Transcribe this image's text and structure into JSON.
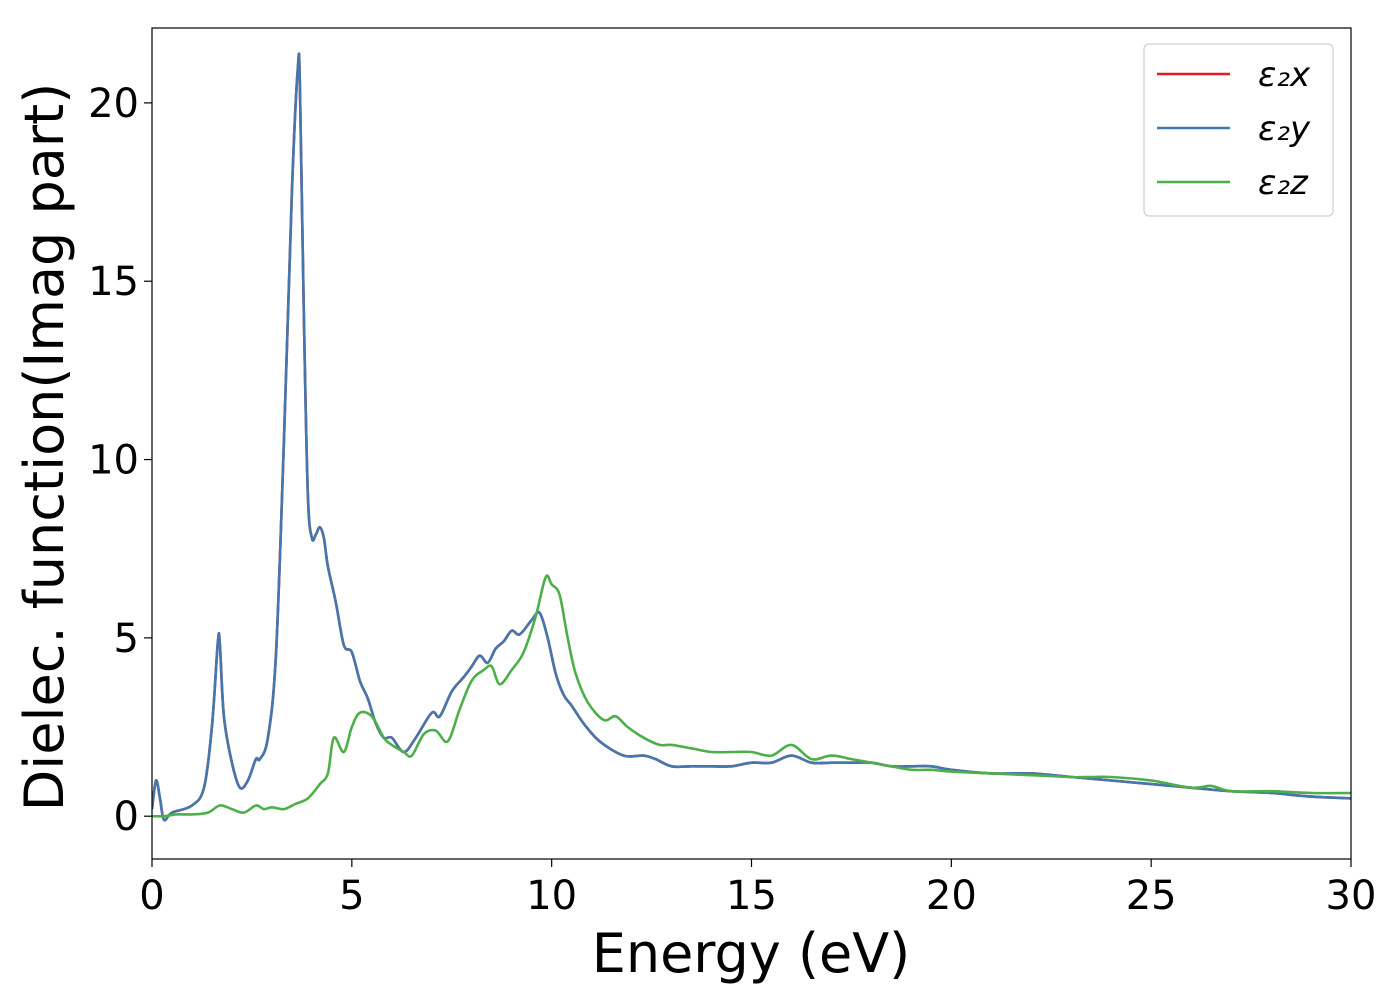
{
  "chart_data": {
    "type": "line",
    "xlabel": "Energy (eV)",
    "ylabel": "Dielec. function(Imag part)",
    "xlim": [
      0,
      30
    ],
    "ylim": [
      -1.2,
      22.1
    ],
    "xticks": [
      0,
      5,
      10,
      15,
      20,
      25,
      30
    ],
    "yticks": [
      0,
      5,
      10,
      15,
      20
    ],
    "legend_position": "top-right",
    "grid": false,
    "series": [
      {
        "name": "ε₂x",
        "color": "#e41a1c",
        "x": [
          0,
          0.1,
          0.2,
          0.3,
          0.5,
          1.0,
          1.3,
          1.5,
          1.65,
          1.7,
          1.8,
          2.0,
          2.2,
          2.4,
          2.6,
          2.7,
          2.9,
          3.1,
          3.3,
          3.5,
          3.65,
          3.7,
          3.8,
          3.9,
          4.0,
          4.1,
          4.2,
          4.3,
          4.4,
          4.6,
          4.8,
          5.0,
          5.2,
          5.4,
          5.6,
          5.8,
          6.0,
          6.3,
          6.6,
          7.0,
          7.2,
          7.5,
          7.8,
          8.0,
          8.2,
          8.4,
          8.6,
          8.8,
          9.0,
          9.2,
          9.5,
          9.7,
          9.9,
          10.1,
          10.3,
          10.5,
          10.8,
          11.2,
          11.8,
          12.3,
          12.6,
          13.0,
          13.5,
          14.0,
          14.5,
          15.0,
          15.5,
          16.0,
          16.5,
          17.0,
          17.5,
          18.0,
          18.5,
          19.0,
          19.5,
          20.0,
          21.0,
          22.0,
          23.0,
          24.0,
          25.0,
          26.0,
          27.0,
          28.0,
          29.0,
          30.0
        ],
        "values": [
          0.2,
          1.0,
          0.5,
          -0.1,
          0.1,
          0.3,
          0.8,
          2.5,
          4.9,
          4.8,
          2.8,
          1.5,
          0.8,
          1.0,
          1.6,
          1.6,
          2.2,
          4.5,
          10.5,
          17.5,
          21.0,
          20.5,
          14.0,
          9.0,
          7.8,
          7.9,
          8.1,
          7.8,
          7.0,
          6.0,
          4.8,
          4.6,
          3.8,
          3.3,
          2.6,
          2.2,
          2.2,
          1.8,
          2.2,
          2.9,
          2.8,
          3.5,
          3.9,
          4.2,
          4.5,
          4.3,
          4.7,
          4.9,
          5.2,
          5.1,
          5.5,
          5.7,
          5.0,
          4.0,
          3.4,
          3.1,
          2.6,
          2.1,
          1.7,
          1.7,
          1.6,
          1.4,
          1.4,
          1.4,
          1.4,
          1.5,
          1.5,
          1.7,
          1.5,
          1.5,
          1.5,
          1.5,
          1.4,
          1.4,
          1.4,
          1.3,
          1.2,
          1.2,
          1.1,
          1.0,
          0.9,
          0.8,
          0.7,
          0.65,
          0.55,
          0.5
        ]
      },
      {
        "name": "ε₂y",
        "color": "#4378ae",
        "x": [
          0,
          0.1,
          0.2,
          0.3,
          0.5,
          1.0,
          1.3,
          1.5,
          1.65,
          1.7,
          1.8,
          2.0,
          2.2,
          2.4,
          2.6,
          2.7,
          2.9,
          3.1,
          3.3,
          3.5,
          3.65,
          3.7,
          3.8,
          3.9,
          4.0,
          4.1,
          4.2,
          4.3,
          4.4,
          4.6,
          4.8,
          5.0,
          5.2,
          5.4,
          5.6,
          5.8,
          6.0,
          6.3,
          6.6,
          7.0,
          7.2,
          7.5,
          7.8,
          8.0,
          8.2,
          8.4,
          8.6,
          8.8,
          9.0,
          9.2,
          9.5,
          9.7,
          9.9,
          10.1,
          10.3,
          10.5,
          10.8,
          11.2,
          11.8,
          12.3,
          12.6,
          13.0,
          13.5,
          14.0,
          14.5,
          15.0,
          15.5,
          16.0,
          16.5,
          17.0,
          17.5,
          18.0,
          18.5,
          19.0,
          19.5,
          20.0,
          21.0,
          22.0,
          23.0,
          24.0,
          25.0,
          26.0,
          27.0,
          28.0,
          29.0,
          30.0
        ],
        "values": [
          0.2,
          1.0,
          0.5,
          -0.1,
          0.1,
          0.3,
          0.8,
          2.5,
          4.9,
          4.8,
          2.8,
          1.5,
          0.8,
          1.0,
          1.6,
          1.6,
          2.2,
          4.5,
          10.5,
          17.5,
          21.0,
          20.5,
          14.0,
          9.0,
          7.8,
          7.9,
          8.1,
          7.8,
          7.0,
          6.0,
          4.8,
          4.6,
          3.8,
          3.3,
          2.6,
          2.2,
          2.2,
          1.8,
          2.2,
          2.9,
          2.8,
          3.5,
          3.9,
          4.2,
          4.5,
          4.3,
          4.7,
          4.9,
          5.2,
          5.1,
          5.5,
          5.7,
          5.0,
          4.0,
          3.4,
          3.1,
          2.6,
          2.1,
          1.7,
          1.7,
          1.6,
          1.4,
          1.4,
          1.4,
          1.4,
          1.5,
          1.5,
          1.7,
          1.5,
          1.5,
          1.5,
          1.5,
          1.4,
          1.4,
          1.4,
          1.3,
          1.2,
          1.2,
          1.1,
          1.0,
          0.9,
          0.8,
          0.7,
          0.65,
          0.55,
          0.5
        ]
      },
      {
        "name": "ε₂z",
        "color": "#4daf4a",
        "x": [
          0,
          0.3,
          0.6,
          1.0,
          1.4,
          1.7,
          2.0,
          2.3,
          2.6,
          2.8,
          3.0,
          3.3,
          3.6,
          3.9,
          4.2,
          4.4,
          4.55,
          4.8,
          5.0,
          5.2,
          5.5,
          5.8,
          6.0,
          6.3,
          6.5,
          6.8,
          7.1,
          7.4,
          7.7,
          8.0,
          8.3,
          8.5,
          8.7,
          9.0,
          9.3,
          9.6,
          9.85,
          10.0,
          10.2,
          10.4,
          10.6,
          10.9,
          11.3,
          11.6,
          11.9,
          12.3,
          12.7,
          13.0,
          13.5,
          14.0,
          14.5,
          15.0,
          15.5,
          16.0,
          16.5,
          17.0,
          17.5,
          18.0,
          18.5,
          19.0,
          19.5,
          20.0,
          21.0,
          22.0,
          23.0,
          23.5,
          24.0,
          25.0,
          26.0,
          26.5,
          27.0,
          28.0,
          29.0,
          30.0
        ],
        "values": [
          0.0,
          0.0,
          0.05,
          0.05,
          0.1,
          0.3,
          0.2,
          0.1,
          0.3,
          0.2,
          0.25,
          0.2,
          0.35,
          0.5,
          0.9,
          1.2,
          2.2,
          1.8,
          2.5,
          2.9,
          2.8,
          2.2,
          2.0,
          1.8,
          1.7,
          2.3,
          2.4,
          2.1,
          3.0,
          3.8,
          4.1,
          4.2,
          3.7,
          4.1,
          4.6,
          5.6,
          6.7,
          6.5,
          6.2,
          5.0,
          4.0,
          3.2,
          2.7,
          2.8,
          2.5,
          2.2,
          2.0,
          2.0,
          1.9,
          1.8,
          1.8,
          1.8,
          1.7,
          2.0,
          1.6,
          1.7,
          1.6,
          1.5,
          1.4,
          1.3,
          1.3,
          1.25,
          1.2,
          1.15,
          1.1,
          1.1,
          1.1,
          1.0,
          0.8,
          0.85,
          0.7,
          0.7,
          0.65,
          0.65
        ]
      }
    ]
  }
}
